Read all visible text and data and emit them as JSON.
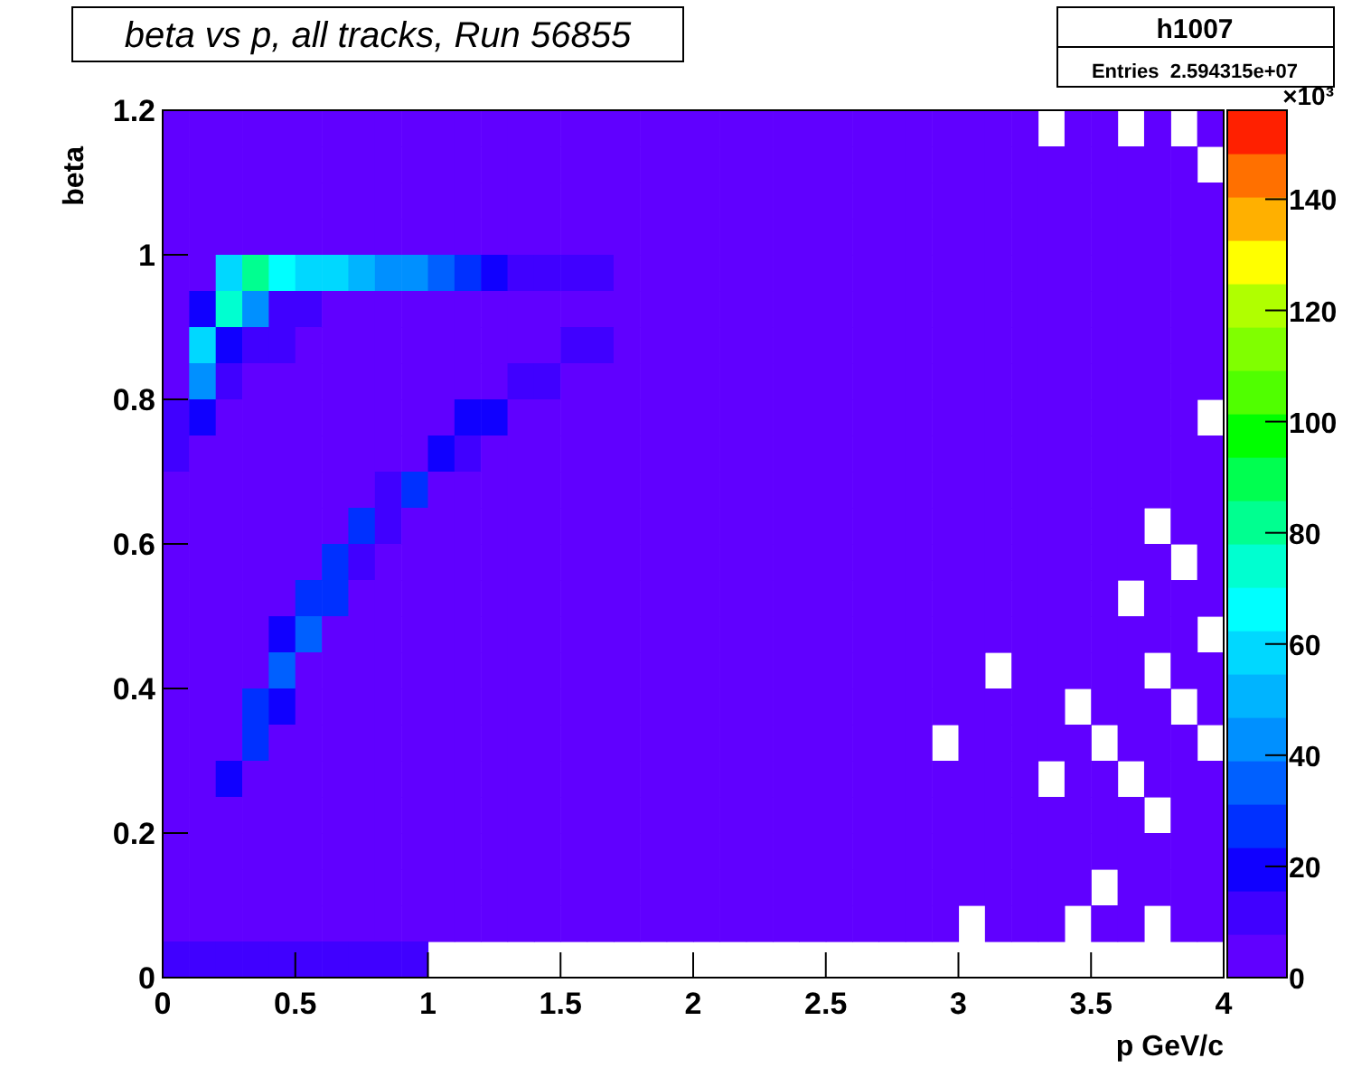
{
  "chart_data": {
    "type": "heatmap",
    "title": "beta vs p, all tracks, Run 56855",
    "xlabel": "p GeV/c",
    "ylabel": "beta",
    "clabel": "×10³",
    "annotations": [
      "h1007",
      "Entries  2.594315e+07"
    ],
    "xlim": [
      0,
      4
    ],
    "ylim": [
      0,
      1.2
    ],
    "xticks": [
      0,
      0.5,
      1,
      1.5,
      2,
      2.5,
      3,
      3.5,
      4
    ],
    "yticks": [
      0,
      0.2,
      0.4,
      0.6,
      0.8,
      1,
      1.2
    ],
    "clim": [
      0,
      156
    ],
    "cticks": [
      0,
      20,
      40,
      60,
      80,
      100,
      120,
      140
    ],
    "cells": [
      [
        3,
        3,
        3,
        3,
        3,
        3,
        3,
        3,
        3,
        3,
        3,
        3,
        3,
        3,
        3,
        3,
        3,
        3,
        3,
        3,
        3,
        3,
        3,
        3,
        3,
        3,
        3,
        3,
        3,
        3,
        3,
        3,
        3,
        null,
        3,
        3,
        null,
        3,
        null,
        3
      ],
      [
        3,
        3,
        3,
        3,
        3,
        3,
        3,
        3,
        3,
        3,
        3,
        3,
        3,
        3,
        3,
        3,
        3,
        3,
        3,
        3,
        3,
        3,
        3,
        3,
        3,
        3,
        3,
        3,
        3,
        3,
        3,
        3,
        3,
        3,
        3,
        3,
        3,
        3,
        3,
        null
      ],
      [
        3,
        3,
        3,
        3,
        3,
        3,
        3,
        3,
        3,
        3,
        3,
        3,
        3,
        3,
        3,
        3,
        3,
        3,
        3,
        3,
        3,
        3,
        3,
        3,
        3,
        3,
        3,
        3,
        3,
        3,
        3,
        3,
        3,
        3,
        3,
        3,
        3,
        3,
        3,
        3
      ],
      [
        3,
        3,
        3,
        3,
        3,
        3,
        3,
        3,
        3,
        3,
        3,
        3,
        3,
        3,
        3,
        3,
        3,
        3,
        3,
        3,
        3,
        3,
        3,
        3,
        3,
        3,
        3,
        3,
        3,
        3,
        3,
        3,
        3,
        3,
        3,
        3,
        3,
        3,
        3,
        3
      ],
      [
        3,
        3,
        60,
        80,
        70,
        60,
        55,
        50,
        45,
        40,
        35,
        25,
        20,
        15,
        15,
        12,
        10,
        3,
        3,
        3,
        3,
        3,
        3,
        3,
        3,
        3,
        3,
        3,
        3,
        3,
        3,
        3,
        3,
        3,
        3,
        3,
        3,
        3,
        3,
        3
      ],
      [
        3,
        20,
        75,
        40,
        15,
        10,
        3,
        3,
        3,
        3,
        3,
        3,
        3,
        3,
        3,
        3,
        3,
        3,
        3,
        3,
        3,
        3,
        3,
        3,
        3,
        3,
        3,
        3,
        3,
        3,
        3,
        3,
        3,
        3,
        3,
        3,
        3,
        3,
        3,
        3
      ],
      [
        3,
        60,
        20,
        10,
        10,
        3,
        3,
        3,
        3,
        3,
        3,
        3,
        3,
        3,
        3,
        12,
        12,
        3,
        3,
        3,
        3,
        3,
        3,
        3,
        3,
        3,
        3,
        3,
        3,
        3,
        3,
        3,
        3,
        3,
        3,
        3,
        3,
        3,
        3,
        3
      ],
      [
        3,
        40,
        12,
        3,
        3,
        3,
        3,
        3,
        3,
        3,
        3,
        3,
        3,
        15,
        15,
        3,
        3,
        3,
        3,
        3,
        3,
        3,
        3,
        3,
        3,
        3,
        3,
        3,
        3,
        3,
        3,
        3,
        3,
        3,
        3,
        3,
        3,
        3,
        3,
        3
      ],
      [
        15,
        20,
        3,
        3,
        3,
        3,
        3,
        3,
        3,
        3,
        3,
        18,
        18,
        3,
        3,
        3,
        3,
        3,
        3,
        3,
        3,
        3,
        3,
        3,
        3,
        3,
        3,
        3,
        3,
        3,
        3,
        3,
        3,
        3,
        3,
        3,
        3,
        3,
        3,
        null
      ],
      [
        10,
        3,
        3,
        3,
        3,
        3,
        3,
        3,
        3,
        3,
        22,
        15,
        3,
        3,
        3,
        3,
        3,
        3,
        3,
        3,
        3,
        3,
        3,
        3,
        3,
        3,
        3,
        3,
        3,
        3,
        3,
        3,
        3,
        3,
        3,
        3,
        3,
        3,
        3,
        3
      ],
      [
        3,
        3,
        3,
        3,
        3,
        3,
        3,
        3,
        15,
        25,
        3,
        3,
        3,
        3,
        3,
        3,
        3,
        3,
        3,
        3,
        3,
        3,
        3,
        3,
        3,
        3,
        3,
        3,
        3,
        3,
        3,
        3,
        3,
        3,
        3,
        3,
        3,
        3,
        3,
        3
      ],
      [
        3,
        3,
        3,
        3,
        3,
        3,
        3,
        28,
        12,
        3,
        3,
        3,
        3,
        3,
        3,
        3,
        3,
        3,
        3,
        3,
        3,
        3,
        3,
        3,
        3,
        3,
        3,
        3,
        3,
        3,
        3,
        3,
        3,
        3,
        3,
        3,
        3,
        null,
        3,
        3
      ],
      [
        3,
        3,
        3,
        3,
        3,
        3,
        30,
        15,
        3,
        3,
        3,
        3,
        3,
        3,
        3,
        3,
        3,
        3,
        3,
        3,
        3,
        3,
        3,
        3,
        3,
        3,
        3,
        3,
        3,
        3,
        3,
        3,
        3,
        3,
        3,
        3,
        3,
        3,
        null,
        3
      ],
      [
        3,
        3,
        3,
        3,
        3,
        25,
        25,
        3,
        3,
        3,
        3,
        3,
        3,
        3,
        3,
        3,
        3,
        3,
        3,
        3,
        3,
        3,
        3,
        3,
        3,
        3,
        3,
        3,
        3,
        3,
        3,
        3,
        3,
        3,
        3,
        3,
        null,
        3,
        3,
        3
      ],
      [
        3,
        3,
        3,
        3,
        20,
        35,
        3,
        3,
        3,
        3,
        3,
        3,
        3,
        3,
        3,
        3,
        3,
        3,
        3,
        3,
        3,
        3,
        3,
        3,
        3,
        3,
        3,
        3,
        3,
        3,
        3,
        3,
        3,
        3,
        3,
        3,
        3,
        3,
        3,
        null
      ],
      [
        3,
        3,
        3,
        3,
        35,
        3,
        3,
        3,
        3,
        3,
        3,
        3,
        3,
        3,
        3,
        3,
        3,
        3,
        3,
        3,
        3,
        3,
        3,
        3,
        3,
        3,
        3,
        3,
        3,
        3,
        3,
        null,
        3,
        3,
        3,
        3,
        3,
        null,
        3,
        3
      ],
      [
        3,
        3,
        3,
        25,
        20,
        3,
        3,
        3,
        3,
        3,
        3,
        3,
        3,
        3,
        3,
        3,
        3,
        3,
        3,
        3,
        3,
        3,
        3,
        3,
        3,
        3,
        3,
        3,
        3,
        3,
        3,
        3,
        3,
        3,
        null,
        3,
        3,
        3,
        null,
        3
      ],
      [
        3,
        3,
        3,
        30,
        3,
        3,
        3,
        3,
        3,
        3,
        3,
        3,
        3,
        3,
        3,
        3,
        3,
        3,
        3,
        3,
        3,
        3,
        3,
        3,
        3,
        3,
        3,
        3,
        3,
        null,
        3,
        3,
        3,
        3,
        3,
        null,
        3,
        3,
        3,
        null
      ],
      [
        3,
        3,
        22,
        3,
        3,
        3,
        3,
        3,
        3,
        3,
        3,
        3,
        3,
        3,
        3,
        3,
        3,
        3,
        3,
        3,
        3,
        3,
        3,
        3,
        3,
        3,
        3,
        3,
        3,
        3,
        3,
        3,
        3,
        null,
        3,
        3,
        null,
        3,
        3,
        3
      ],
      [
        3,
        3,
        3,
        3,
        3,
        3,
        3,
        3,
        3,
        3,
        3,
        3,
        3,
        3,
        3,
        3,
        3,
        3,
        3,
        3,
        3,
        3,
        3,
        3,
        3,
        3,
        3,
        3,
        3,
        3,
        3,
        3,
        3,
        3,
        3,
        3,
        3,
        null,
        3,
        3
      ],
      [
        3,
        3,
        3,
        3,
        3,
        3,
        3,
        3,
        3,
        3,
        3,
        3,
        3,
        3,
        3,
        3,
        3,
        3,
        3,
        3,
        3,
        3,
        3,
        3,
        3,
        3,
        3,
        3,
        3,
        3,
        3,
        3,
        3,
        3,
        3,
        3,
        3,
        3,
        3,
        3
      ],
      [
        3,
        3,
        3,
        3,
        3,
        3,
        3,
        3,
        3,
        3,
        3,
        3,
        3,
        3,
        3,
        3,
        3,
        3,
        3,
        3,
        3,
        3,
        3,
        3,
        3,
        3,
        3,
        3,
        3,
        3,
        3,
        3,
        3,
        3,
        3,
        null,
        3,
        3,
        3,
        3
      ],
      [
        3,
        3,
        3,
        3,
        3,
        3,
        3,
        3,
        3,
        3,
        3,
        3,
        3,
        3,
        3,
        3,
        3,
        3,
        3,
        3,
        3,
        3,
        3,
        3,
        3,
        3,
        3,
        3,
        3,
        3,
        null,
        3,
        3,
        3,
        null,
        3,
        3,
        null,
        3,
        3
      ],
      [
        15,
        15,
        15,
        15,
        15,
        15,
        15,
        15,
        15,
        15,
        null,
        null,
        null,
        null,
        null,
        null,
        null,
        null,
        null,
        null,
        null,
        null,
        null,
        null,
        null,
        null,
        null,
        null,
        null,
        null,
        null,
        null,
        null,
        null,
        null,
        null,
        null,
        null,
        null,
        null
      ]
    ]
  }
}
